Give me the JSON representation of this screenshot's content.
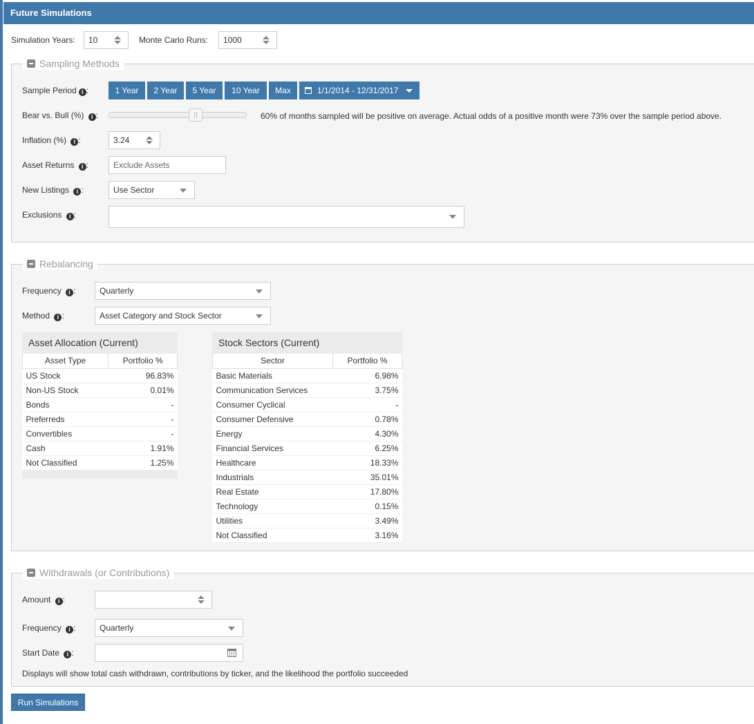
{
  "title": "Future Simulations",
  "sim": {
    "years_label": "Simulation Years:",
    "years": "10",
    "runs_label": "Monte Carlo Runs:",
    "runs": "1000"
  },
  "sampling": {
    "legend": "Sampling Methods",
    "period_label": "Sample Period",
    "periods": [
      "1 Year",
      "2 Year",
      "5 Year",
      "10 Year",
      "Max"
    ],
    "date_range": "1/1/2014 - 12/31/2017",
    "bear_label": "Bear vs. Bull (%)",
    "bear_value_pct": 60,
    "bear_text": "60% of months sampled will be positive on average. Actual odds of a positive month were 73% over the sample period above.",
    "inflation_label": "Inflation (%)",
    "inflation": "3.24",
    "asset_returns_label": "Asset Returns",
    "asset_returns_placeholder": "Exclude Assets",
    "new_listings_label": "New Listings",
    "new_listings": "Use Sector",
    "exclusions_label": "Exclusions"
  },
  "rebalancing": {
    "legend": "Rebalancing",
    "frequency_label": "Frequency",
    "frequency": "Quarterly",
    "method_label": "Method",
    "method": "Asset Category and Stock Sector",
    "asset_table": {
      "title": "Asset Allocation (Current)",
      "headers": [
        "Asset Type",
        "Portfolio %"
      ],
      "rows": [
        [
          "US Stock",
          "96.83%"
        ],
        [
          "Non-US Stock",
          "0.01%"
        ],
        [
          "Bonds",
          "-"
        ],
        [
          "Preferreds",
          "-"
        ],
        [
          "Convertibles",
          "-"
        ],
        [
          "Cash",
          "1.91%"
        ],
        [
          "Not Classified",
          "1.25%"
        ]
      ]
    },
    "sector_table": {
      "title": "Stock Sectors (Current)",
      "headers": [
        "Sector",
        "Portfolio %"
      ],
      "rows": [
        [
          "Basic Materials",
          "6.98%"
        ],
        [
          "Communication Services",
          "3.75%"
        ],
        [
          "Consumer Cyclical",
          "-"
        ],
        [
          "Consumer Defensive",
          "0.78%"
        ],
        [
          "Energy",
          "4.30%"
        ],
        [
          "Financial Services",
          "6.25%"
        ],
        [
          "Healthcare",
          "18.33%"
        ],
        [
          "Industrials",
          "35.01%"
        ],
        [
          "Real Estate",
          "17.80%"
        ],
        [
          "Technology",
          "0.15%"
        ],
        [
          "Utilities",
          "3.49%"
        ],
        [
          "Not Classified",
          "3.16%"
        ]
      ]
    }
  },
  "withdrawals": {
    "legend": "Withdrawals (or Contributions)",
    "amount_label": "Amount",
    "frequency_label": "Frequency",
    "frequency": "Quarterly",
    "start_label": "Start Date",
    "note": "Displays will show total cash withdrawn, contributions by ticker, and the likelihood the portfolio succeeded"
  },
  "run_label": "Run Simulations"
}
